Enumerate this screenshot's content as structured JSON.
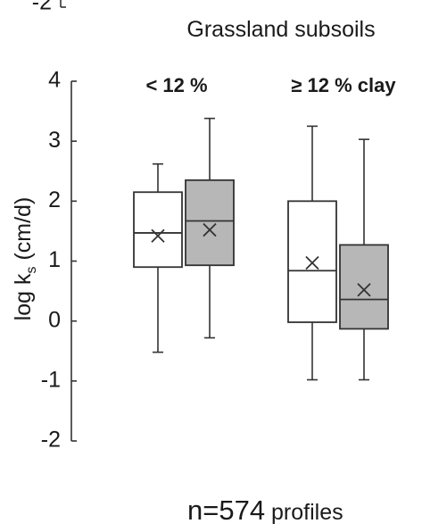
{
  "chart_data": {
    "type": "box",
    "title": "Grassland subsoils",
    "ylabel_main": "log k",
    "ylabel_sub": "s",
    "ylabel_unit": " (cm/d)",
    "ylim": [
      -2,
      4
    ],
    "yticks": [
      4,
      3,
      2,
      1,
      0,
      -1,
      -2
    ],
    "top_cut_tick": "-2",
    "groups": [
      {
        "label": "< 12 %",
        "boxes": [
          {
            "fill": "#ffffff",
            "whisker_low": -0.52,
            "q1": 0.9,
            "median": 1.47,
            "q3": 2.15,
            "whisker_high": 2.62,
            "mean": 1.42
          },
          {
            "fill": "#b7b7b7",
            "whisker_low": -0.28,
            "q1": 0.93,
            "median": 1.67,
            "q3": 2.35,
            "whisker_high": 3.38,
            "mean": 1.52
          }
        ]
      },
      {
        "label": "≥ 12 % clay",
        "boxes": [
          {
            "fill": "#ffffff",
            "whisker_low": -0.98,
            "q1": -0.02,
            "median": 0.84,
            "q3": 2.0,
            "whisker_high": 3.25,
            "mean": 0.97
          },
          {
            "fill": "#b7b7b7",
            "whisker_low": -0.98,
            "q1": -0.13,
            "median": 0.36,
            "q3": 1.27,
            "whisker_high": 3.03,
            "mean": 0.52
          }
        ]
      }
    ]
  },
  "footer": {
    "n_text": "n=574",
    "profiles_text": " profiles"
  }
}
